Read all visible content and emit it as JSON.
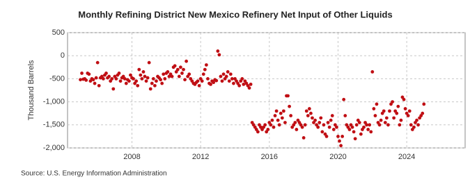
{
  "chart_data": {
    "type": "scatter",
    "title": "Monthly Refining District New Mexico Refinery Net Input of Other Liquids",
    "y_label": "Thousand Barrels",
    "source": "Source: U.S. Energy Information Administration",
    "color": "#c00f14",
    "grid": true,
    "xlim": [
      2004.25,
      2027.4
    ],
    "xticks": [
      2008,
      2012,
      2016,
      2020,
      2024
    ],
    "ylim": [
      -2000,
      500
    ],
    "yticks": [
      500,
      0,
      -500,
      {
        "value": -1000,
        "label": "-1,000"
      },
      {
        "value": -1500,
        "label": "-1,500"
      },
      {
        "value": -2000,
        "label": "-2,000"
      }
    ],
    "x": [
      2005,
      2005.083,
      2005.167,
      2005.25,
      2005.333,
      2005.417,
      2005.5,
      2005.583,
      2005.667,
      2005.75,
      2005.833,
      2005.917,
      2006,
      2006.083,
      2006.167,
      2006.25,
      2006.333,
      2006.417,
      2006.5,
      2006.583,
      2006.667,
      2006.75,
      2006.833,
      2006.917,
      2007,
      2007.083,
      2007.167,
      2007.25,
      2007.333,
      2007.417,
      2007.5,
      2007.583,
      2007.667,
      2007.75,
      2007.833,
      2007.917,
      2008,
      2008.083,
      2008.167,
      2008.25,
      2008.333,
      2008.417,
      2008.5,
      2008.583,
      2008.667,
      2008.75,
      2008.833,
      2008.917,
      2009,
      2009.083,
      2009.167,
      2009.25,
      2009.333,
      2009.417,
      2009.5,
      2009.583,
      2009.667,
      2009.75,
      2009.833,
      2009.917,
      2010,
      2010.083,
      2010.167,
      2010.25,
      2010.333,
      2010.417,
      2010.5,
      2010.583,
      2010.667,
      2010.75,
      2010.833,
      2010.917,
      2011,
      2011.083,
      2011.167,
      2011.25,
      2011.333,
      2011.417,
      2011.5,
      2011.583,
      2011.667,
      2011.75,
      2011.833,
      2011.917,
      2012,
      2012.083,
      2012.167,
      2012.25,
      2012.333,
      2012.417,
      2012.5,
      2012.583,
      2012.667,
      2012.75,
      2012.833,
      2012.917,
      2013,
      2013.083,
      2013.167,
      2013.25,
      2013.333,
      2013.417,
      2013.5,
      2013.583,
      2013.667,
      2013.75,
      2013.833,
      2013.917,
      2014,
      2014.083,
      2014.167,
      2014.25,
      2014.333,
      2014.417,
      2014.5,
      2014.583,
      2014.667,
      2014.75,
      2014.833,
      2014.917,
      2015,
      2015.083,
      2015.167,
      2015.25,
      2015.333,
      2015.417,
      2015.5,
      2015.583,
      2015.667,
      2015.75,
      2015.833,
      2015.917,
      2016,
      2016.083,
      2016.167,
      2016.25,
      2016.333,
      2016.417,
      2016.5,
      2016.583,
      2016.667,
      2016.75,
      2016.833,
      2016.917,
      2017,
      2017.083,
      2017.167,
      2017.25,
      2017.333,
      2017.417,
      2017.5,
      2017.583,
      2017.667,
      2017.75,
      2017.833,
      2017.917,
      2018,
      2018.083,
      2018.167,
      2018.25,
      2018.333,
      2018.417,
      2018.5,
      2018.583,
      2018.667,
      2018.75,
      2018.833,
      2018.917,
      2019,
      2019.083,
      2019.167,
      2019.25,
      2019.333,
      2019.417,
      2019.5,
      2019.583,
      2019.667,
      2019.75,
      2019.833,
      2019.917,
      2020,
      2020.083,
      2020.167,
      2020.25,
      2020.333,
      2020.417,
      2020.5,
      2020.583,
      2020.667,
      2020.75,
      2020.833,
      2020.917,
      2021,
      2021.083,
      2021.167,
      2021.25,
      2021.333,
      2021.417,
      2021.5,
      2021.583,
      2021.667,
      2021.75,
      2021.833,
      2021.917,
      2022,
      2022.083,
      2022.167,
      2022.25,
      2022.333,
      2022.417,
      2022.5,
      2022.583,
      2022.667,
      2022.75,
      2022.833,
      2022.917,
      2023,
      2023.083,
      2023.167,
      2023.25,
      2023.333,
      2023.417,
      2023.5,
      2023.583,
      2023.667,
      2023.75,
      2023.833,
      2023.917,
      2024,
      2024.083,
      2024.167,
      2024.25,
      2024.333,
      2024.417,
      2024.5,
      2024.583,
      2024.667,
      2024.75,
      2024.833,
      2024.917,
      2025
    ],
    "values": [
      -520,
      -380,
      -510,
      -500,
      -530,
      -380,
      -400,
      -550,
      -500,
      -520,
      -600,
      -480,
      -150,
      -650,
      -480,
      -450,
      -500,
      -420,
      -380,
      -480,
      -450,
      -550,
      -500,
      -720,
      -450,
      -500,
      -420,
      -380,
      -550,
      -480,
      -450,
      -500,
      -600,
      -520,
      -550,
      -420,
      -480,
      -500,
      -600,
      -550,
      -650,
      -300,
      -420,
      -500,
      -350,
      -450,
      -550,
      -480,
      -150,
      -720,
      -600,
      -500,
      -650,
      -550,
      -450,
      -480,
      -520,
      -600,
      -400,
      -500,
      -380,
      -350,
      -450,
      -400,
      -450,
      -250,
      -220,
      -350,
      -300,
      -450,
      -250,
      -380,
      -300,
      -520,
      -120,
      -450,
      -400,
      -500,
      -550,
      -600,
      -620,
      -580,
      -550,
      -650,
      -500,
      -550,
      -400,
      -300,
      -200,
      -500,
      -600,
      -620,
      -550,
      -580,
      -520,
      -540,
      100,
      20,
      -450,
      -550,
      -400,
      -500,
      -450,
      -350,
      -550,
      -400,
      -500,
      -600,
      -500,
      -550,
      -600,
      -650,
      -550,
      -500,
      -620,
      -550,
      -600,
      -650,
      -700,
      -620,
      -1450,
      -1500,
      -1550,
      -1600,
      -1650,
      -1500,
      -1550,
      -1600,
      -1550,
      -1500,
      -1650,
      -1600,
      -1450,
      -1500,
      -1400,
      -1550,
      -1300,
      -1200,
      -1400,
      -1500,
      -1250,
      -1350,
      -1200,
      -1450,
      -870,
      -870,
      -1100,
      -1300,
      -1550,
      -1500,
      -1450,
      -1600,
      -1400,
      -1450,
      -1500,
      -1550,
      -1780,
      -1500,
      -1200,
      -1300,
      -1150,
      -1250,
      -1350,
      -1450,
      -1400,
      -1500,
      -1550,
      -1450,
      -1350,
      -1650,
      -1500,
      -1700,
      -1750,
      -1450,
      -1550,
      -1400,
      -1300,
      -1600,
      -1500,
      -1550,
      -1750,
      -1850,
      -1950,
      -1750,
      -950,
      -1300,
      -1500,
      -1550,
      -1600,
      -1500,
      -1550,
      -1650,
      -1800,
      -1500,
      -1400,
      -1450,
      -1700,
      -1600,
      -1550,
      -1450,
      -1500,
      -1600,
      -1500,
      -1650,
      -350,
      -1150,
      -1300,
      -1050,
      -1450,
      -1500,
      -1400,
      -1250,
      -1200,
      -1450,
      -1350,
      -1500,
      -1200,
      -1050,
      -1000,
      -1350,
      -1200,
      -1250,
      -1100,
      -1500,
      -1400,
      -900,
      -950,
      -1150,
      -1250,
      -1300,
      -1200,
      -1500,
      -1600,
      -1550,
      -1450,
      -1400,
      -1500,
      -1350,
      -1300,
      -1250,
      -1050
    ]
  }
}
